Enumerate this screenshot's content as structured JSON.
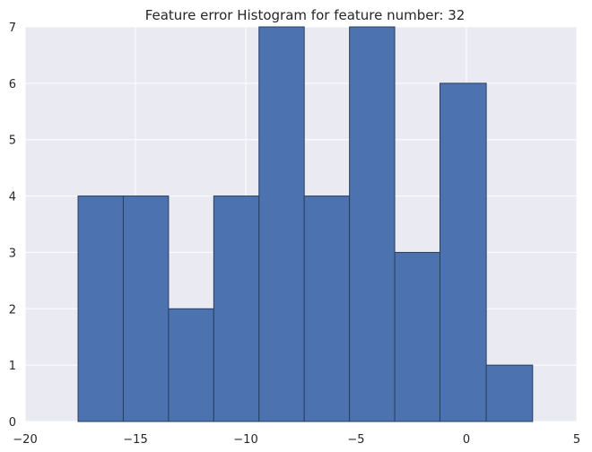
{
  "chart_data": {
    "type": "bar",
    "title": "Feature error Histogram for feature number: 32",
    "xlabel": "",
    "ylabel": "",
    "xlim": [
      -20,
      5
    ],
    "ylim": [
      0,
      7
    ],
    "xticks": [
      -20,
      -15,
      -10,
      -5,
      0,
      5
    ],
    "yticks": [
      0,
      1,
      2,
      3,
      4,
      5,
      6,
      7
    ],
    "bin_edges": [
      -17.6,
      -15.55,
      -13.5,
      -11.45,
      -9.4,
      -7.35,
      -5.3,
      -3.25,
      -1.2,
      0.9,
      3.0
    ],
    "counts": [
      4,
      4,
      2,
      4,
      7,
      4,
      7,
      3,
      6,
      1
    ],
    "grid": true,
    "colors": {
      "bar_fill": "#4c72b0",
      "bar_edge": "#2a3f5f",
      "plot_background": "#eaeaf2",
      "grid": "#ffffff"
    }
  }
}
